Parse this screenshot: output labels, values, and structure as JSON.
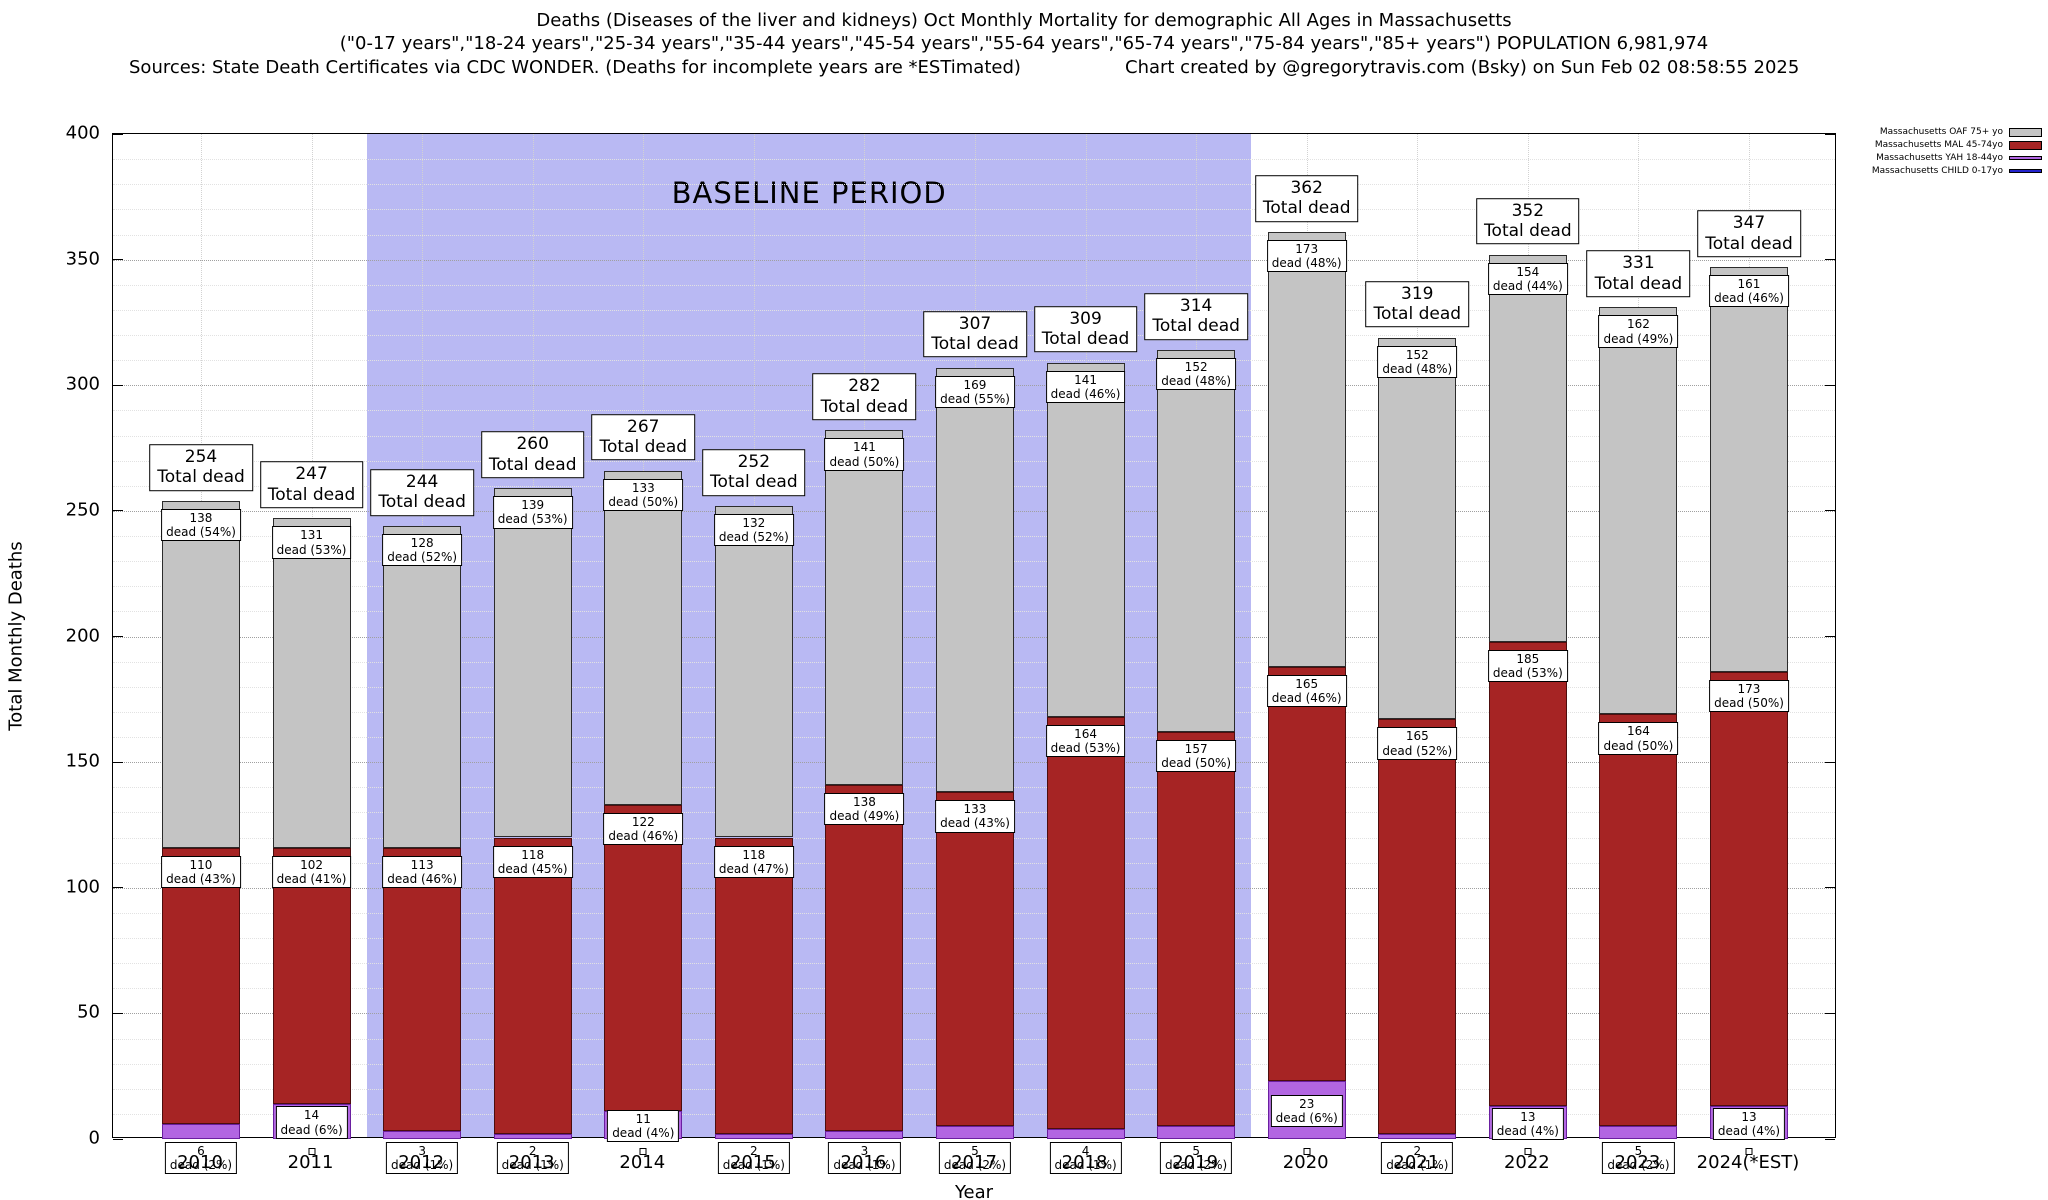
{
  "header": {
    "title_line1": "Deaths (Diseases of the liver and kidneys) Oct Monthly Mortality for demographic All Ages in Massachusetts",
    "title_line2": "(\"0-17 years\",\"18-24 years\",\"25-34 years\",\"35-44 years\",\"45-54 years\",\"55-64 years\",\"65-74 years\",\"75-84 years\",\"85+ years\") POPULATION 6,981,974",
    "sources": "Sources: State Death Certificates via CDC WONDER. (Deaths for incomplete years are *ESTimated)",
    "credit": "Chart created by @gregorytravis.com (Bsky) on Sun Feb 02 08:58:55 2025"
  },
  "chart_data": {
    "type": "bar",
    "stacked": true,
    "title": "Deaths (Diseases of the liver and kidneys) Oct Monthly Mortality for demographic All Ages in Massachusetts",
    "xlabel": "Year",
    "ylabel": "Total Monthly Deaths",
    "ylim": [
      0,
      400
    ],
    "ytick_step": 50,
    "grid": true,
    "legend_position": "top-right",
    "categories": [
      "2010",
      "2011",
      "2012",
      "2013",
      "2014",
      "2015",
      "2016",
      "2017",
      "2018",
      "2019",
      "2020",
      "2021",
      "2022",
      "2023",
      "2024(*EST)"
    ],
    "totals": [
      254,
      247,
      244,
      260,
      267,
      252,
      282,
      307,
      309,
      314,
      362,
      319,
      352,
      331,
      347
    ],
    "series": [
      {
        "key": "child",
        "name": "Massachusetts CHILD 0-17yo",
        "color": "#2323cc",
        "border": "#15157a",
        "values": [
          0,
          0,
          0,
          0,
          0,
          0,
          0,
          0,
          0,
          0,
          0,
          0,
          0,
          0,
          0
        ]
      },
      {
        "key": "yah",
        "name": "Massachusetts YAH 18-44yo",
        "color": "#b266e2",
        "border": "#6a1fa0",
        "values": [
          6,
          14,
          3,
          2,
          11,
          2,
          3,
          5,
          4,
          5,
          23,
          2,
          13,
          5,
          13
        ],
        "pct": [
          2,
          6,
          1,
          1,
          4,
          1,
          1,
          2,
          1,
          2,
          6,
          1,
          4,
          2,
          4
        ]
      },
      {
        "key": "mal",
        "name": "Massachusetts MAL 45-74yo",
        "color": "#a62424",
        "border": "#4d0d0d",
        "values": [
          110,
          102,
          113,
          118,
          122,
          118,
          138,
          133,
          164,
          157,
          165,
          165,
          185,
          164,
          173
        ],
        "pct": [
          43,
          41,
          46,
          45,
          46,
          47,
          49,
          43,
          53,
          50,
          46,
          52,
          53,
          50,
          50
        ]
      },
      {
        "key": "oaf",
        "name": "Massachusetts OAF 75+ yo",
        "color": "#c4c4c4",
        "border": "#2b2b2b",
        "values": [
          138,
          131,
          128,
          139,
          133,
          132,
          141,
          169,
          141,
          152,
          173,
          152,
          154,
          162,
          161
        ],
        "pct": [
          54,
          53,
          52,
          53,
          50,
          52,
          50,
          55,
          46,
          48,
          48,
          48,
          44,
          49,
          46
        ]
      }
    ],
    "labels": {
      "total_suffix": "Total dead",
      "dead_word": "dead"
    },
    "baseline": {
      "label": "BASELINE PERIOD",
      "start_category": "2012",
      "end_category": "2019",
      "color": "#b9b9f3"
    },
    "legend": [
      {
        "label": "Massachusetts OAF 75+ yo",
        "color": "#c4c4c4",
        "style": "box"
      },
      {
        "label": "Massachusetts MAL 45-74yo",
        "color": "#a62424",
        "style": "box"
      },
      {
        "label": "Massachusetts YAH 18-44yo",
        "color": "#b266e2",
        "style": "line"
      },
      {
        "label": "Massachusetts CHILD 0-17yo",
        "color": "#2323cc",
        "style": "line"
      }
    ]
  }
}
